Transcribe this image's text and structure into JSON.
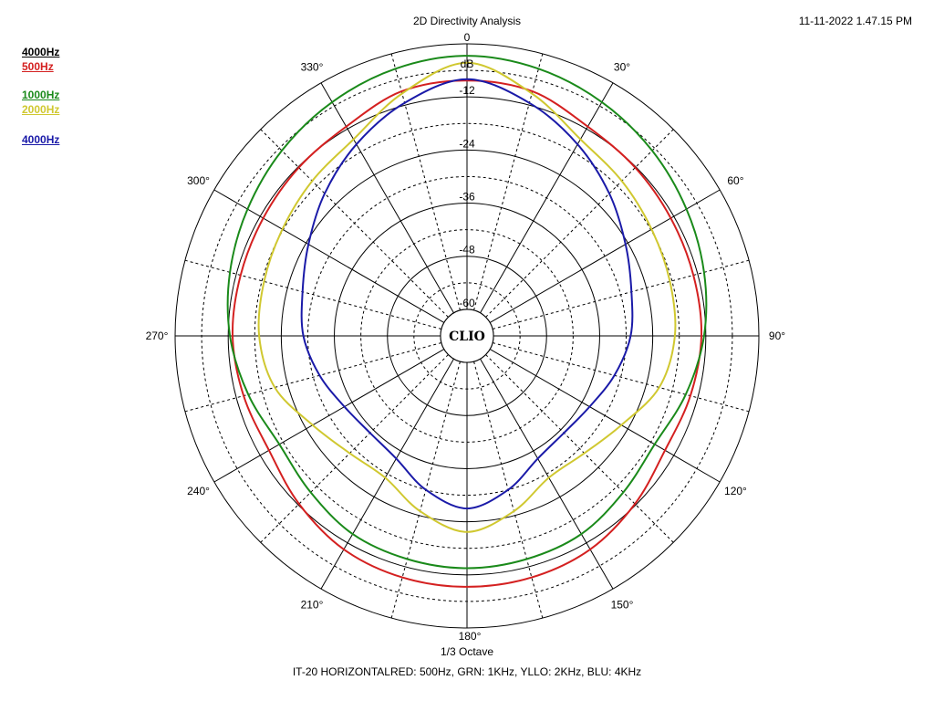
{
  "header": {
    "title": "2D Directivity Analysis",
    "timestamp": "11-11-2022 1.47.15 PM"
  },
  "footer": {
    "smoothing": "1/3 Octave",
    "caption": "IT-20 HORIZONTALRED: 500Hz, GRN: 1KHz, YLLO: 2KHz, BLU: 4KHz"
  },
  "legend": [
    {
      "label": "4000Hz",
      "color": "#000000"
    },
    {
      "label": "500Hz",
      "color": "#d42020"
    },
    {
      "label": "1000Hz",
      "color": "#1a8a1a"
    },
    {
      "label": "2000Hz",
      "color": "#d0c830"
    },
    {
      "label": "4000Hz",
      "color": "#1a1aa8"
    }
  ],
  "logo": "CLIO",
  "chart_data": {
    "type": "polar",
    "title": "2D Directivity Analysis",
    "radial_unit": "dB",
    "radial_range": [
      -66,
      0
    ],
    "radial_ticks": [
      0,
      -12,
      -24,
      -36,
      -48,
      -60
    ],
    "radial_tick_labels": [
      "dB",
      "-12",
      "-24",
      "-36",
      "-48",
      "-60"
    ],
    "angle_tick_labels": [
      "0",
      "30°",
      "60°",
      "90°",
      "120°",
      "150°",
      "180°",
      "210°",
      "240°",
      "270°",
      "300°",
      "330°"
    ],
    "angles_deg": [
      0,
      15,
      30,
      45,
      60,
      75,
      90,
      105,
      120,
      135,
      150,
      165,
      180,
      195,
      210,
      225,
      240,
      255,
      270,
      285,
      300,
      315,
      330,
      345
    ],
    "grid": true,
    "series": [
      {
        "name": "500Hz",
        "color": "#d42020",
        "values": [
          -8.3,
          -8.8,
          -11.4,
          -12.2,
          -12.8,
          -13,
          -13,
          -13.7,
          -14.3,
          -12.3,
          -10.3,
          -9.5,
          -9.3,
          -9.5,
          -10.3,
          -12.3,
          -14.3,
          -13.7,
          -13,
          -13,
          -12.8,
          -12.2,
          -11.4,
          -8.8
        ]
      },
      {
        "name": "1000Hz",
        "color": "#1a8a1a",
        "values": [
          -2.7,
          -3.5,
          -5,
          -6.8,
          -8.7,
          -10.5,
          -12.4,
          -14.8,
          -17,
          -16,
          -14.3,
          -13.8,
          -13.5,
          -13.8,
          -14.3,
          -16,
          -17,
          -14.8,
          -12.4,
          -10.5,
          -8.7,
          -6.8,
          -5,
          -3.5
        ]
      },
      {
        "name": "2000Hz",
        "color": "#d0c830",
        "values": [
          -4.3,
          -9.3,
          -14.7,
          -16.5,
          -17.8,
          -18.5,
          -19,
          -21,
          -25.7,
          -28.5,
          -29,
          -25,
          -21.7,
          -25,
          -29,
          -28.5,
          -25.7,
          -21,
          -19,
          -18.5,
          -17.8,
          -16.5,
          -14.7,
          -9.3
        ]
      },
      {
        "name": "4000Hz",
        "color": "#1a1aa8",
        "values": [
          -8,
          -11.5,
          -16,
          -20.5,
          -24.6,
          -27.5,
          -29,
          -31.5,
          -34,
          -35,
          -34,
          -30,
          -27,
          -30,
          -34,
          -35,
          -34,
          -31.5,
          -29,
          -27.5,
          -24.6,
          -20.5,
          -16,
          -11.5
        ]
      }
    ]
  }
}
